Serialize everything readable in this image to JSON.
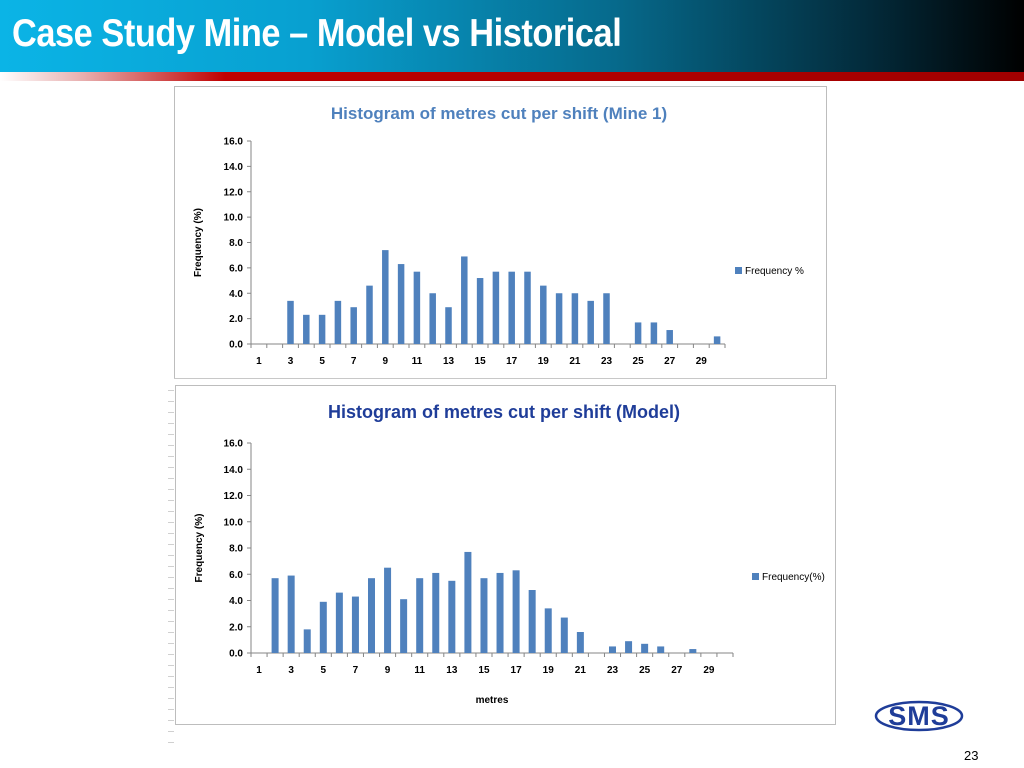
{
  "slide": {
    "title": "Case Study Mine – Model vs Historical",
    "page_number": "23",
    "logo_text": "SMS"
  },
  "colors": {
    "bar": "#4f81bd",
    "chart1_title": "#4f81bd",
    "chart2_title": "#1f3d99",
    "header_start": "#0bb4e6",
    "header_end": "#000000",
    "rule": "#c00000"
  },
  "chart_data": [
    {
      "type": "bar",
      "title": "Histogram of metres cut per shift (Mine 1)",
      "xlabel": "",
      "ylabel": "Frequency (%)",
      "ylim": [
        0,
        16
      ],
      "yticks": [
        "0.0",
        "2.0",
        "4.0",
        "6.0",
        "8.0",
        "10.0",
        "12.0",
        "14.0",
        "16.0"
      ],
      "x_tick_labels": [
        "1",
        "3",
        "5",
        "7",
        "9",
        "11",
        "13",
        "15",
        "17",
        "19",
        "21",
        "23",
        "25",
        "27",
        "29"
      ],
      "categories": [
        1,
        2,
        3,
        4,
        5,
        6,
        7,
        8,
        9,
        10,
        11,
        12,
        13,
        14,
        15,
        16,
        17,
        18,
        19,
        20,
        21,
        22,
        23,
        24,
        25,
        26,
        27,
        28,
        29,
        30
      ],
      "grid": false,
      "legend": "right",
      "series": [
        {
          "name": "Frequency %",
          "values": [
            0,
            0,
            3.4,
            2.3,
            2.3,
            3.4,
            2.9,
            4.6,
            7.4,
            6.3,
            5.7,
            4.0,
            2.9,
            6.9,
            5.2,
            5.7,
            5.7,
            5.7,
            4.6,
            4.0,
            4.0,
            3.4,
            4.0,
            0,
            1.7,
            1.7,
            1.1,
            0,
            0,
            0.6
          ]
        }
      ]
    },
    {
      "type": "bar",
      "title": "Histogram of metres cut per shift (Model)",
      "xlabel": "metres",
      "ylabel": "Frequency (%)",
      "ylim": [
        0,
        16
      ],
      "yticks": [
        "0.0",
        "2.0",
        "4.0",
        "6.0",
        "8.0",
        "10.0",
        "12.0",
        "14.0",
        "16.0"
      ],
      "x_tick_labels": [
        "1",
        "3",
        "5",
        "7",
        "9",
        "11",
        "13",
        "15",
        "17",
        "19",
        "21",
        "23",
        "25",
        "27",
        "29"
      ],
      "categories": [
        1,
        2,
        3,
        4,
        5,
        6,
        7,
        8,
        9,
        10,
        11,
        12,
        13,
        14,
        15,
        16,
        17,
        18,
        19,
        20,
        21,
        22,
        23,
        24,
        25,
        26,
        27,
        28,
        29,
        30
      ],
      "grid": false,
      "legend": "right",
      "series": [
        {
          "name": "Frequency(%)",
          "values": [
            0,
            5.7,
            5.9,
            1.8,
            3.9,
            4.6,
            4.3,
            5.7,
            6.5,
            4.1,
            5.7,
            6.1,
            5.5,
            7.7,
            5.7,
            6.1,
            6.3,
            4.8,
            3.4,
            2.7,
            1.6,
            0,
            0.5,
            0.9,
            0.7,
            0.5,
            0,
            0.3,
            0,
            0
          ]
        }
      ]
    }
  ]
}
